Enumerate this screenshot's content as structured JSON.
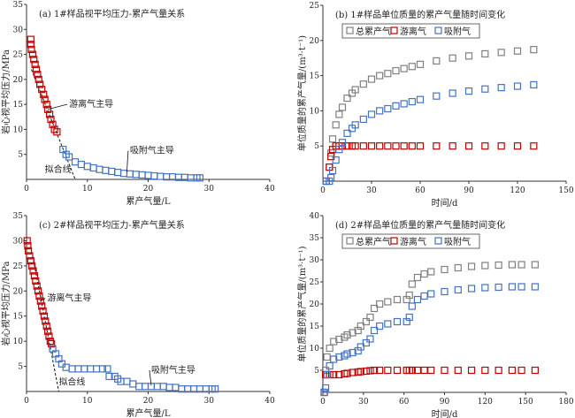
{
  "colors": {
    "free": "#c00000",
    "adsorbed": "#4472c4",
    "total": "#808080",
    "axis": "#333333"
  },
  "chart_data": [
    {
      "id": "a",
      "type": "scatter",
      "title": "(a) 1#样品视平均压力-累产气量关系",
      "xlabel": "累产气量/L",
      "ylabel": "岩心视平均压力/MPa",
      "xlim": [
        0,
        40
      ],
      "ylim": [
        0,
        35
      ],
      "xticks": [
        0,
        10,
        20,
        30,
        40
      ],
      "yticks": [
        5,
        10,
        15,
        20,
        25,
        30,
        35
      ],
      "xtick_labels": [
        "0",
        "10",
        "20",
        "30",
        "40"
      ],
      "ytick_labels": [
        "5",
        "10",
        "15",
        "20",
        "25",
        "30",
        "35"
      ],
      "series": [
        {
          "name": "游离气",
          "color_key": "free",
          "points": [
            [
              0.7,
              28
            ],
            [
              0.7,
              27
            ],
            [
              0.8,
              26
            ],
            [
              1,
              25
            ],
            [
              1.2,
              24
            ],
            [
              1.4,
              23
            ],
            [
              1.6,
              22
            ],
            [
              1.8,
              21
            ],
            [
              2,
              20
            ],
            [
              2.2,
              19
            ],
            [
              2.5,
              18
            ],
            [
              2.8,
              17
            ],
            [
              3,
              16
            ],
            [
              3.3,
              15
            ],
            [
              3.5,
              14
            ],
            [
              3.8,
              13
            ],
            [
              4,
              12
            ],
            [
              4.3,
              11
            ],
            [
              4.6,
              10
            ],
            [
              5,
              9.5
            ]
          ]
        },
        {
          "name": "吸附气",
          "color_key": "adsorbed",
          "points": [
            [
              6,
              6
            ],
            [
              6.5,
              5
            ],
            [
              7,
              4.5
            ],
            [
              8,
              3.5
            ],
            [
              9,
              3
            ],
            [
              10,
              2.6
            ],
            [
              11,
              2.3
            ],
            [
              12,
              2
            ],
            [
              13,
              1.8
            ],
            [
              14,
              1.6
            ],
            [
              15,
              1.4
            ],
            [
              16,
              1.2
            ],
            [
              17,
              1.1
            ],
            [
              18,
              1
            ],
            [
              19,
              0.9
            ],
            [
              20,
              0.8
            ],
            [
              21,
              0.7
            ],
            [
              22,
              0.6
            ],
            [
              23,
              0.5
            ],
            [
              24,
              0.5
            ],
            [
              25,
              0.4
            ],
            [
              26,
              0.4
            ],
            [
              27,
              0.3
            ],
            [
              28,
              0.3
            ],
            [
              28.5,
              0.3
            ]
          ]
        }
      ],
      "fit_line": [
        [
          0.8,
          22
        ],
        [
          8,
          0
        ]
      ],
      "annotations": [
        {
          "text": "游离气主导",
          "at": [
            7,
            14.5
          ],
          "from": [
            3.5,
            14
          ]
        },
        {
          "text": "吸附气主导",
          "at": [
            17,
            5.2
          ],
          "from": [
            16.5,
            1.5
          ]
        },
        {
          "text": "拟合线",
          "at": [
            3,
            1.4
          ],
          "from": null
        }
      ]
    },
    {
      "id": "b",
      "type": "scatter",
      "title": "(b) 1#样品单位质量的累产气量随时间变化",
      "xlabel": "时间/d",
      "ylabel": "单位质量的累产气量/(m³·t⁻¹)",
      "xlim": [
        0,
        150
      ],
      "ylim": [
        0,
        25
      ],
      "xticks": [
        0,
        30,
        60,
        90,
        120,
        150
      ],
      "yticks": [
        5,
        10,
        15,
        20,
        25
      ],
      "xtick_labels": [
        "0",
        "30",
        "60",
        "90",
        "120",
        "150"
      ],
      "ytick_labels": [
        "5",
        "10",
        "15",
        "20",
        "25"
      ],
      "legend": {
        "placement": "top",
        "entries": [
          "总累产气",
          "游离气",
          "吸附气"
        ]
      },
      "series": [
        {
          "name": "总累产气",
          "color_key": "total",
          "x": [
            2,
            4,
            5,
            6,
            8,
            10,
            12,
            15,
            18,
            20,
            25,
            30,
            35,
            40,
            45,
            50,
            55,
            60,
            70,
            80,
            90,
            100,
            110,
            120,
            130
          ],
          "y": [
            0,
            2,
            4,
            6,
            8,
            9.5,
            10.5,
            11.8,
            12.5,
            13,
            13.8,
            14.5,
            15,
            15.3,
            15.7,
            16,
            16.3,
            16.6,
            17.1,
            17.5,
            17.8,
            18.1,
            18.3,
            18.5,
            18.7
          ]
        },
        {
          "name": "游离气",
          "color_key": "free",
          "x": [
            2,
            4,
            5,
            6,
            8,
            10,
            12,
            15,
            18,
            20,
            25,
            30,
            35,
            40,
            45,
            50,
            55,
            60,
            70,
            80,
            90,
            100,
            110,
            120,
            130
          ],
          "y": [
            0,
            2,
            3.5,
            4.5,
            5,
            5,
            5,
            5,
            5,
            5,
            5,
            5,
            5,
            5,
            5,
            5,
            5,
            5,
            5,
            5,
            5,
            5,
            5,
            5,
            5
          ]
        },
        {
          "name": "吸附气",
          "color_key": "adsorbed",
          "x": [
            2,
            4,
            5,
            6,
            8,
            10,
            12,
            15,
            18,
            20,
            25,
            30,
            35,
            40,
            45,
            50,
            55,
            60,
            70,
            80,
            90,
            100,
            110,
            120,
            130
          ],
          "y": [
            0,
            0,
            0.5,
            1.5,
            3,
            4.5,
            5.5,
            6.8,
            7.5,
            8,
            8.8,
            9.5,
            10,
            10.3,
            10.7,
            11,
            11.3,
            11.6,
            12.1,
            12.5,
            12.8,
            13.1,
            13.3,
            13.5,
            13.7
          ]
        }
      ]
    },
    {
      "id": "c",
      "type": "scatter",
      "title": "(c) 2#样品视平均压力-累产气量关系",
      "xlabel": "累产气量/L",
      "ylabel": "岩心视平均压力/MPa",
      "xlim": [
        0,
        40
      ],
      "ylim": [
        0,
        35
      ],
      "xticks": [
        0,
        10,
        20,
        30,
        40
      ],
      "yticks": [
        5,
        10,
        15,
        20,
        25,
        30,
        35
      ],
      "xtick_labels": [
        "0",
        "10",
        "20",
        "30",
        "40"
      ],
      "ytick_labels": [
        "5",
        "10",
        "15",
        "20",
        "25",
        "30",
        "35"
      ],
      "series": [
        {
          "name": "游离气",
          "color_key": "free",
          "points": [
            [
              0.1,
              30
            ],
            [
              0.2,
              29
            ],
            [
              0.3,
              28
            ],
            [
              0.5,
              27
            ],
            [
              0.7,
              26
            ],
            [
              0.9,
              25
            ],
            [
              1.1,
              24
            ],
            [
              1.3,
              23
            ],
            [
              1.5,
              22
            ],
            [
              1.7,
              21
            ],
            [
              1.9,
              20
            ],
            [
              2.1,
              19
            ],
            [
              2.3,
              18
            ],
            [
              2.5,
              17
            ],
            [
              2.7,
              16
            ],
            [
              2.9,
              15
            ],
            [
              3.1,
              14
            ],
            [
              3.3,
              13
            ],
            [
              3.5,
              12
            ],
            [
              3.7,
              11
            ],
            [
              3.9,
              10
            ],
            [
              4.1,
              9.5
            ]
          ]
        },
        {
          "name": "吸附气",
          "color_key": "adsorbed",
          "points": [
            [
              4.3,
              8.5
            ],
            [
              4.8,
              7.5
            ],
            [
              5.3,
              6.5
            ],
            [
              5.8,
              5.5
            ],
            [
              6.5,
              4.8
            ],
            [
              7.5,
              4.5
            ],
            [
              8.5,
              4.5
            ],
            [
              9.5,
              4.5
            ],
            [
              10.5,
              4.5
            ],
            [
              11.5,
              4.5
            ],
            [
              12.5,
              4.5
            ],
            [
              13.3,
              4.5
            ],
            [
              13.6,
              3
            ],
            [
              14.5,
              3
            ],
            [
              15,
              2.5
            ],
            [
              15.5,
              2
            ],
            [
              16.5,
              2
            ],
            [
              17.5,
              1.5
            ],
            [
              18.5,
              1
            ],
            [
              19.5,
              1
            ],
            [
              20.5,
              1
            ],
            [
              21.5,
              1
            ],
            [
              22.5,
              1
            ],
            [
              23.5,
              0.8
            ],
            [
              24.5,
              0.8
            ],
            [
              25.5,
              0.5
            ],
            [
              26.5,
              0.5
            ],
            [
              27.5,
              0.5
            ],
            [
              28.5,
              0.5
            ],
            [
              29.5,
              0.5
            ],
            [
              30.5,
              0.5
            ],
            [
              31,
              0.5
            ]
          ]
        }
      ],
      "fit_line": [
        [
          1,
          27
        ],
        [
          5.3,
          0
        ]
      ],
      "annotations": [
        {
          "text": "游离气主导",
          "at": [
            3.4,
            18
          ],
          "from": [
            2.2,
            18
          ]
        },
        {
          "text": "吸附气主导",
          "at": [
            20.5,
            3.7
          ],
          "from": [
            20.5,
            1.2
          ]
        },
        {
          "text": "拟合线",
          "at": [
            5.3,
            1.3
          ],
          "from": null
        }
      ]
    },
    {
      "id": "d",
      "type": "scatter",
      "title": "(d) 2#样品单位质量的累产气量随时间变化",
      "xlabel": "时间/d",
      "ylabel": "单位质量的累产气量/(m³·t⁻¹)",
      "xlim": [
        0,
        180
      ],
      "ylim": [
        0,
        40
      ],
      "xticks": [
        0,
        30,
        60,
        90,
        120,
        150,
        180
      ],
      "yticks": [
        5,
        10,
        15,
        20,
        25,
        30,
        35,
        40
      ],
      "xtick_labels": [
        "0",
        "30",
        "60",
        "90",
        "120",
        "150",
        "180"
      ],
      "ytick_labels": [
        "5",
        "10",
        "15",
        "20",
        "25",
        "30",
        "35",
        "40"
      ],
      "legend": {
        "placement": "top",
        "entries": [
          "总累产气",
          "游离气",
          "吸附气"
        ]
      },
      "series": [
        {
          "name": "总累产气",
          "color_key": "total",
          "x": [
            1,
            2,
            3,
            5,
            8,
            12,
            16,
            18,
            22,
            26,
            28,
            32,
            35,
            38,
            42,
            48,
            55,
            62,
            64,
            66,
            70,
            75,
            80,
            90,
            100,
            110,
            120,
            130,
            140,
            147,
            157
          ],
          "y": [
            0,
            5,
            8,
            10,
            11.5,
            12,
            12.5,
            13,
            13.5,
            14,
            15,
            16,
            17,
            19,
            20,
            20.5,
            21,
            21,
            22,
            24.5,
            26,
            26.8,
            27.3,
            27.8,
            28.2,
            28.5,
            28.7,
            28.8,
            28.9,
            28.9,
            28.9
          ]
        },
        {
          "name": "游离气",
          "color_key": "free",
          "x": [
            1,
            2,
            3,
            5,
            8,
            12,
            16,
            18,
            22,
            26,
            28,
            32,
            35,
            38,
            42,
            48,
            55,
            62,
            64,
            66,
            70,
            75,
            80,
            90,
            100,
            110,
            120,
            130,
            140,
            147,
            157
          ],
          "y": [
            0,
            4,
            4,
            4,
            4,
            4,
            4.2,
            4.3,
            4.5,
            4.6,
            4.7,
            4.8,
            4.9,
            5,
            5,
            5,
            5,
            5,
            5,
            5,
            5,
            5,
            5,
            5,
            5,
            5,
            5,
            5,
            5,
            5,
            5
          ]
        },
        {
          "name": "吸附气",
          "color_key": "adsorbed",
          "x": [
            1,
            2,
            3,
            5,
            8,
            12,
            16,
            18,
            22,
            26,
            28,
            32,
            35,
            38,
            42,
            48,
            55,
            62,
            64,
            66,
            70,
            75,
            80,
            90,
            100,
            110,
            120,
            130,
            140,
            147,
            157
          ],
          "y": [
            0,
            1,
            4,
            6,
            7.5,
            8,
            8.3,
            8.7,
            9,
            9.4,
            10.3,
            11.2,
            12.1,
            14,
            15,
            15.5,
            16,
            16,
            17,
            19.5,
            21,
            21.8,
            22.3,
            22.8,
            23.2,
            23.5,
            23.7,
            23.8,
            23.9,
            23.9,
            23.9
          ]
        }
      ]
    }
  ]
}
